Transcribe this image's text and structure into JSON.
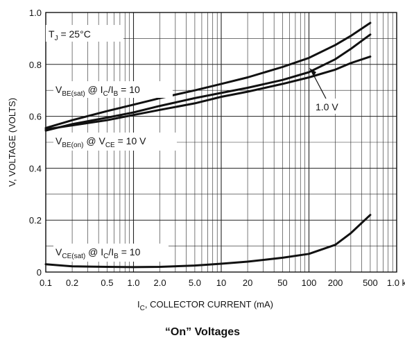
{
  "chart_data": {
    "type": "line",
    "title": "“On” Voltages",
    "xlabel": {
      "main": "I",
      "sub": "C",
      "rest": ", COLLECTOR CURRENT (mA)"
    },
    "ylabel": "V, VOLTAGE (VOLTS)",
    "xscale": "log",
    "xlim": [
      0.1,
      1000
    ],
    "ylim": [
      0,
      1.0
    ],
    "grid": true,
    "x_ticks": [
      {
        "value": 0.1,
        "label": "0.1"
      },
      {
        "value": 0.2,
        "label": "0.2"
      },
      {
        "value": 0.5,
        "label": "0.5"
      },
      {
        "value": 1,
        "label": "1.0"
      },
      {
        "value": 2,
        "label": "2.0"
      },
      {
        "value": 5,
        "label": "5.0"
      },
      {
        "value": 10,
        "label": "10"
      },
      {
        "value": 20,
        "label": "20"
      },
      {
        "value": 50,
        "label": "50"
      },
      {
        "value": 100,
        "label": "100"
      },
      {
        "value": 200,
        "label": "200"
      },
      {
        "value": 500,
        "label": "500"
      },
      {
        "value": 1000,
        "label": "1.0 k"
      }
    ],
    "y_ticks": [
      {
        "value": 0,
        "label": "0"
      },
      {
        "value": 0.2,
        "label": "0.2"
      },
      {
        "value": 0.4,
        "label": "0.4"
      },
      {
        "value": 0.6,
        "label": "0.6"
      },
      {
        "value": 0.8,
        "label": "0.8"
      },
      {
        "value": 1.0,
        "label": "1.0"
      }
    ],
    "series": [
      {
        "id": "vbe-sat",
        "x": [
          0.1,
          0.2,
          0.5,
          1,
          2,
          5,
          10,
          20,
          50,
          100,
          200,
          300,
          500
        ],
        "y": [
          0.555,
          0.585,
          0.62,
          0.645,
          0.67,
          0.7,
          0.725,
          0.75,
          0.79,
          0.825,
          0.875,
          0.91,
          0.96
        ]
      },
      {
        "id": "vbe-sat-1v",
        "x": [
          0.1,
          0.2,
          0.5,
          1,
          2,
          5,
          10,
          20,
          50,
          100,
          200,
          300,
          500
        ],
        "y": [
          0.545,
          0.57,
          0.595,
          0.615,
          0.64,
          0.67,
          0.69,
          0.71,
          0.74,
          0.77,
          0.82,
          0.86,
          0.915
        ]
      },
      {
        "id": "vbe-on",
        "x": [
          0.1,
          0.2,
          0.5,
          1,
          2,
          5,
          10,
          20,
          50,
          100,
          200,
          300,
          500
        ],
        "y": [
          0.55,
          0.565,
          0.585,
          0.605,
          0.625,
          0.65,
          0.675,
          0.695,
          0.725,
          0.75,
          0.78,
          0.805,
          0.83
        ]
      },
      {
        "id": "vce-sat",
        "x": [
          0.1,
          0.2,
          0.5,
          1,
          2,
          5,
          10,
          20,
          50,
          100,
          200,
          300,
          500
        ],
        "y": [
          0.03,
          0.022,
          0.02,
          0.019,
          0.02,
          0.025,
          0.032,
          0.04,
          0.055,
          0.07,
          0.105,
          0.15,
          0.22
        ]
      }
    ],
    "annotations": {
      "tj": {
        "main": "T",
        "sub": "J",
        "rest": " = 25°C"
      },
      "vbe_sat": {
        "v": "V",
        "vsub": "BE(sat)",
        "at": " @ I",
        "isub1": "C",
        "slash": "/I",
        "isub2": "B",
        "eq": " = 10"
      },
      "vbe_on": {
        "v": "V",
        "vsub": "BE(on)",
        "at": " @ V",
        "vsub2": "CE",
        "eq": " = 10 V"
      },
      "vce_sat": {
        "v": "V",
        "vsub": "CE(sat)",
        "at": " @ I",
        "isub1": "C",
        "slash": "/I",
        "isub2": "B",
        "eq": " = 10"
      },
      "one_volt": "1.0 V"
    }
  }
}
